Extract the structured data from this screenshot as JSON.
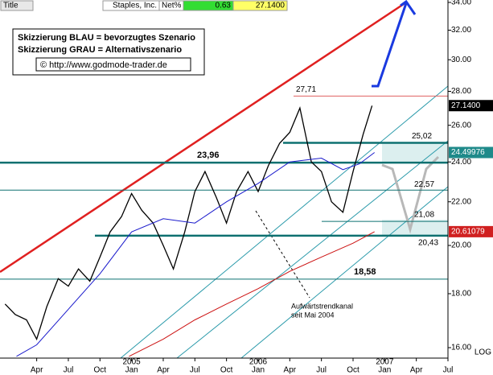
{
  "chart_data": {
    "type": "line",
    "log": true,
    "header": {
      "title_label": "Title",
      "name": "Staples, Inc.",
      "net_label": "Net%",
      "net": 0.63,
      "last": {
        "value": 27.14,
        "label": "27.1400"
      }
    },
    "notes": [
      "Skizzierung BLAU = bevorzugtes Szenario",
      "Skizzierung GRAU = Alternativszenario",
      "© http://www.godmode-trader.de"
    ],
    "annotation_lines": [
      "Aufwärtstrendkanal",
      "seit Mai 2004"
    ],
    "scale_label": "LOG",
    "xlim": [
      2003.96,
      2007.5
    ],
    "ylim": [
      16,
      34
    ],
    "yticks": [
      {
        "value": 16,
        "label": "16.00"
      },
      {
        "value": 18,
        "label": "18.00"
      },
      {
        "value": 20,
        "label": "20.00"
      },
      {
        "value": 22,
        "label": "22.00"
      },
      {
        "value": 24,
        "label": "24.00"
      },
      {
        "value": 26,
        "label": "26.00"
      },
      {
        "value": 28,
        "label": "28.00"
      },
      {
        "value": 30,
        "label": "30.00"
      },
      {
        "value": 32,
        "label": "32.00"
      },
      {
        "value": 34,
        "label": "34.00"
      }
    ],
    "xticks": [
      {
        "value": 2004.25,
        "label": "Apr"
      },
      {
        "value": 2004.5,
        "label": "Jul"
      },
      {
        "value": 2004.75,
        "label": "Oct"
      },
      {
        "value": 2005,
        "label": "Jan"
      },
      {
        "value": 2005.25,
        "label": "Apr"
      },
      {
        "value": 2005.5,
        "label": "Jul"
      },
      {
        "value": 2005.75,
        "label": "Oct"
      },
      {
        "value": 2006,
        "label": "Jan"
      },
      {
        "value": 2006.25,
        "label": "Apr"
      },
      {
        "value": 2006.5,
        "label": "Jul"
      },
      {
        "value": 2006.75,
        "label": "Oct"
      },
      {
        "value": 2007,
        "label": "Jan"
      },
      {
        "value": 2007.25,
        "label": "Apr"
      },
      {
        "value": 2007.5,
        "label": "Jul"
      }
    ],
    "year_ticks": [
      2005,
      2006,
      2007
    ],
    "series": [
      {
        "color": "#000000",
        "x": [
          2004.0,
          2004.08,
          2004.17,
          2004.25,
          2004.33,
          2004.42,
          2004.5,
          2004.58,
          2004.67,
          2004.75,
          2004.83,
          2004.92,
          2005.0,
          2005.08,
          2005.17,
          2005.25,
          2005.33,
          2005.42,
          2005.5,
          2005.58,
          2005.67,
          2005.75,
          2005.83,
          2005.92,
          2006.0,
          2006.08,
          2006.17,
          2006.25,
          2006.33,
          2006.42,
          2006.5,
          2006.58,
          2006.67,
          2006.75,
          2006.83,
          2006.9
        ],
        "values": [
          17.6,
          17.2,
          17.0,
          16.3,
          17.5,
          18.6,
          18.3,
          19.0,
          18.5,
          19.5,
          20.6,
          21.3,
          22.4,
          21.6,
          21.0,
          20.0,
          19.0,
          20.6,
          22.5,
          23.5,
          22.2,
          21.0,
          22.5,
          23.5,
          22.5,
          23.8,
          25.0,
          25.6,
          27.0,
          24.0,
          23.5,
          22.0,
          21.5,
          23.5,
          25.5,
          27.14
        ]
      },
      {
        "color": "#1a1acc",
        "x": [
          2004.09,
          2004.25,
          2004.5,
          2004.75,
          2005.0,
          2005.25,
          2005.5,
          2005.75,
          2006.0,
          2006.25,
          2006.5,
          2006.67,
          2006.8,
          2006.92
        ],
        "values": [
          15.7,
          16.1,
          17.4,
          18.8,
          20.6,
          21.2,
          21.0,
          22.0,
          22.9,
          24.0,
          24.2,
          23.6,
          23.9,
          24.5
        ]
      },
      {
        "color": "#cc1111",
        "x": [
          2004.98,
          2005.25,
          2005.5,
          2005.75,
          2006.0,
          2006.25,
          2006.5,
          2006.75,
          2006.92
        ],
        "values": [
          15.7,
          16.3,
          17.0,
          17.6,
          18.2,
          18.9,
          19.5,
          20.1,
          20.61
        ]
      }
    ],
    "levels": [
      {
        "value": 27.71,
        "label": "27,71",
        "color": "#e06060",
        "bold": false
      },
      {
        "value": 25.02,
        "label": "25,02",
        "color": "#0e7070",
        "bold": true
      },
      {
        "value": 23.96,
        "label": "23,96",
        "color": "#0e7070",
        "bold": true
      },
      {
        "value": 22.57,
        "label": "22,57",
        "color": "#0e7070",
        "bold": false
      },
      {
        "value": 21.08,
        "label": "21,08",
        "color": "#0e7070",
        "bold": false
      },
      {
        "value": 20.43,
        "label": "20,43",
        "color": "#0e7070",
        "bold": true
      },
      {
        "value": 18.58,
        "label": "18,58",
        "color": "#0e7070",
        "bold": false
      }
    ],
    "markers": [
      {
        "value": 27.14,
        "label": "27.1400",
        "color": "#000000"
      },
      {
        "value": 24.49976,
        "label": "24.49976",
        "color": "#1f8a8a"
      },
      {
        "value": 20.61079,
        "label": "20.61079",
        "color": "#d02020"
      }
    ]
  }
}
